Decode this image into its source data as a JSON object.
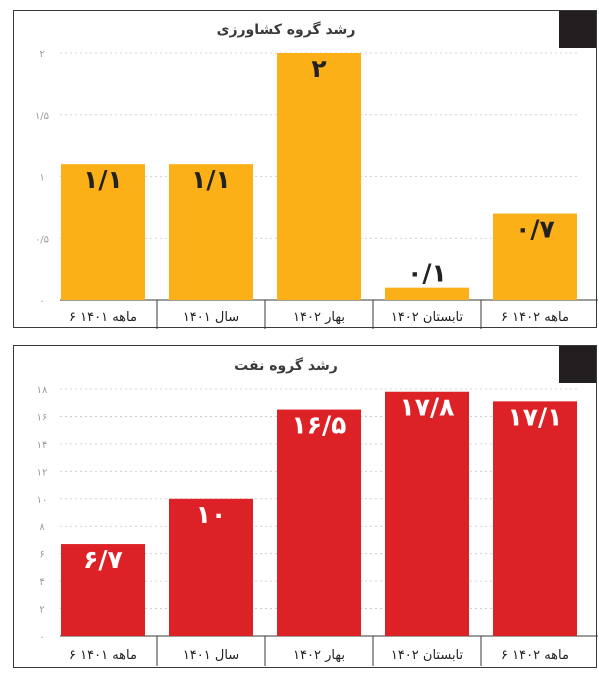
{
  "chart_data": [
    {
      "type": "bar",
      "title": "رشد گروه کشاورزی",
      "categories": [
        "۶ ماهه ۱۴۰۱",
        "سال ۱۴۰۱",
        "بهار ۱۴۰۲",
        "تابستان ۱۴۰۲",
        "۶ ماهه ۱۴۰۲"
      ],
      "values": [
        1.1,
        1.1,
        2,
        0.1,
        0.7
      ],
      "value_labels": [
        "۱/۱",
        "۱/۱",
        "۲",
        "۰/۱",
        "۰/۷"
      ],
      "yticks": [
        0,
        0.5,
        1,
        1.5,
        2
      ],
      "ytick_labels": [
        "۰",
        "۰/۵",
        "۱",
        "۱/۵",
        "۲"
      ],
      "ylim": [
        0,
        2
      ],
      "grid": true,
      "bar_color": "#fbb018",
      "label_color": "#222222"
    },
    {
      "type": "bar",
      "title": "رشد گروه نفت",
      "categories": [
        "۶ ماهه ۱۴۰۱",
        "سال ۱۴۰۱",
        "بهار ۱۴۰۲",
        "تابستان ۱۴۰۲",
        "۶ ماهه ۱۴۰۲"
      ],
      "values": [
        6.7,
        10,
        16.5,
        17.8,
        17.1
      ],
      "value_labels": [
        "۶/۷",
        "۱۰",
        "۱۶/۵",
        "۱۷/۸",
        "۱۷/۱"
      ],
      "yticks": [
        0,
        2,
        4,
        6,
        8,
        10,
        12,
        14,
        16,
        18
      ],
      "ytick_labels": [
        "۰",
        "۲",
        "۴",
        "۶",
        "۸",
        "۱۰",
        "۱۲",
        "۱۴",
        "۱۶",
        "۱۸"
      ],
      "ylim": [
        0,
        18
      ],
      "grid": true,
      "bar_color": "#dd2227",
      "label_color": "#ffffff"
    }
  ],
  "colors": {
    "panel_border": "#3a3a3a",
    "corner_block": "#231f20",
    "grid": "#c8c8c8"
  }
}
